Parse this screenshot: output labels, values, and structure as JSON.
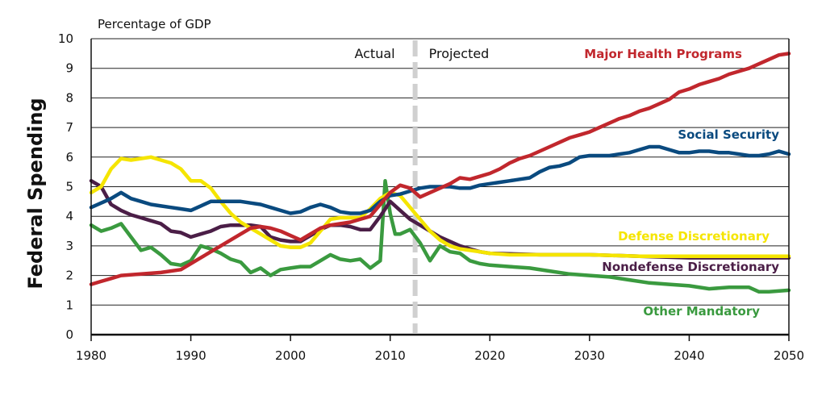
{
  "chart_data": {
    "type": "line",
    "title": "",
    "ylabel": "Federal Spending",
    "yunit_label": "Percentage of GDP",
    "xlim": [
      1980,
      2050
    ],
    "ylim": [
      0,
      10
    ],
    "x_ticks": [
      1980,
      1990,
      2000,
      2010,
      2020,
      2030,
      2040,
      2050
    ],
    "y_ticks": [
      0,
      1,
      2,
      3,
      4,
      5,
      6,
      7,
      8,
      9,
      10
    ],
    "grid": "horizontal",
    "divider": {
      "x": 2012.5,
      "left_label": "Actual",
      "right_label": "Projected",
      "color": "#d0d0d0"
    },
    "series": [
      {
        "name": "Major Health Programs",
        "color": "#c1272d",
        "points": [
          [
            1980,
            1.7
          ],
          [
            1981,
            1.8
          ],
          [
            1982,
            1.9
          ],
          [
            1983,
            2.0
          ],
          [
            1985,
            2.05
          ],
          [
            1987,
            2.1
          ],
          [
            1989,
            2.2
          ],
          [
            1990,
            2.4
          ],
          [
            1991,
            2.6
          ],
          [
            1992,
            2.8
          ],
          [
            1993,
            3.0
          ],
          [
            1994,
            3.2
          ],
          [
            1995,
            3.4
          ],
          [
            1996,
            3.6
          ],
          [
            1997,
            3.65
          ],
          [
            1998,
            3.6
          ],
          [
            1999,
            3.5
          ],
          [
            2000,
            3.35
          ],
          [
            2001,
            3.2
          ],
          [
            2002,
            3.4
          ],
          [
            2003,
            3.6
          ],
          [
            2004,
            3.7
          ],
          [
            2005,
            3.75
          ],
          [
            2006,
            3.8
          ],
          [
            2007,
            3.9
          ],
          [
            2008,
            4.0
          ],
          [
            2009,
            4.4
          ],
          [
            2010,
            4.8
          ],
          [
            2011,
            5.05
          ],
          [
            2012,
            4.95
          ],
          [
            2013,
            4.65
          ],
          [
            2014,
            4.8
          ],
          [
            2015,
            4.95
          ],
          [
            2016,
            5.1
          ],
          [
            2017,
            5.3
          ],
          [
            2018,
            5.25
          ],
          [
            2019,
            5.35
          ],
          [
            2020,
            5.45
          ],
          [
            2021,
            5.6
          ],
          [
            2022,
            5.8
          ],
          [
            2023,
            5.95
          ],
          [
            2024,
            6.05
          ],
          [
            2025,
            6.2
          ],
          [
            2026,
            6.35
          ],
          [
            2027,
            6.5
          ],
          [
            2028,
            6.65
          ],
          [
            2029,
            6.75
          ],
          [
            2030,
            6.85
          ],
          [
            2031,
            7.0
          ],
          [
            2032,
            7.15
          ],
          [
            2033,
            7.3
          ],
          [
            2034,
            7.4
          ],
          [
            2035,
            7.55
          ],
          [
            2036,
            7.65
          ],
          [
            2037,
            7.8
          ],
          [
            2038,
            7.95
          ],
          [
            2039,
            8.2
          ],
          [
            2040,
            8.3
          ],
          [
            2041,
            8.45
          ],
          [
            2042,
            8.55
          ],
          [
            2043,
            8.65
          ],
          [
            2044,
            8.8
          ],
          [
            2045,
            8.9
          ],
          [
            2046,
            9.0
          ],
          [
            2047,
            9.15
          ],
          [
            2048,
            9.3
          ],
          [
            2049,
            9.45
          ],
          [
            2050,
            9.5
          ]
        ]
      },
      {
        "name": "Social Security",
        "color": "#0a4a7f",
        "points": [
          [
            1980,
            4.3
          ],
          [
            1981,
            4.45
          ],
          [
            1982,
            4.6
          ],
          [
            1983,
            4.8
          ],
          [
            1984,
            4.6
          ],
          [
            1985,
            4.5
          ],
          [
            1986,
            4.4
          ],
          [
            1987,
            4.35
          ],
          [
            1988,
            4.3
          ],
          [
            1989,
            4.25
          ],
          [
            1990,
            4.2
          ],
          [
            1991,
            4.35
          ],
          [
            1992,
            4.5
          ],
          [
            1993,
            4.5
          ],
          [
            1994,
            4.5
          ],
          [
            1995,
            4.5
          ],
          [
            1996,
            4.45
          ],
          [
            1997,
            4.4
          ],
          [
            1998,
            4.3
          ],
          [
            1999,
            4.2
          ],
          [
            2000,
            4.1
          ],
          [
            2001,
            4.15
          ],
          [
            2002,
            4.3
          ],
          [
            2003,
            4.4
          ],
          [
            2004,
            4.3
          ],
          [
            2005,
            4.15
          ],
          [
            2006,
            4.1
          ],
          [
            2007,
            4.1
          ],
          [
            2008,
            4.2
          ],
          [
            2009,
            4.5
          ],
          [
            2010,
            4.7
          ],
          [
            2011,
            4.75
          ],
          [
            2012,
            4.85
          ],
          [
            2013,
            4.95
          ],
          [
            2014,
            5.0
          ],
          [
            2015,
            5.0
          ],
          [
            2016,
            5.0
          ],
          [
            2017,
            4.95
          ],
          [
            2018,
            4.95
          ],
          [
            2019,
            5.05
          ],
          [
            2020,
            5.1
          ],
          [
            2021,
            5.15
          ],
          [
            2022,
            5.2
          ],
          [
            2023,
            5.25
          ],
          [
            2024,
            5.3
          ],
          [
            2025,
            5.5
          ],
          [
            2026,
            5.65
          ],
          [
            2027,
            5.7
          ],
          [
            2028,
            5.8
          ],
          [
            2029,
            6.0
          ],
          [
            2030,
            6.05
          ],
          [
            2031,
            6.05
          ],
          [
            2032,
            6.05
          ],
          [
            2033,
            6.1
          ],
          [
            2034,
            6.15
          ],
          [
            2035,
            6.25
          ],
          [
            2036,
            6.35
          ],
          [
            2037,
            6.35
          ],
          [
            2038,
            6.25
          ],
          [
            2039,
            6.15
          ],
          [
            2040,
            6.15
          ],
          [
            2041,
            6.2
          ],
          [
            2042,
            6.2
          ],
          [
            2043,
            6.15
          ],
          [
            2044,
            6.15
          ],
          [
            2045,
            6.1
          ],
          [
            2046,
            6.05
          ],
          [
            2047,
            6.05
          ],
          [
            2048,
            6.1
          ],
          [
            2049,
            6.2
          ],
          [
            2050,
            6.1
          ]
        ]
      },
      {
        "name": "Defense Discretionary",
        "color": "#f5e500",
        "points": [
          [
            1980,
            4.8
          ],
          [
            1981,
            5.0
          ],
          [
            1982,
            5.6
          ],
          [
            1983,
            5.95
          ],
          [
            1984,
            5.9
          ],
          [
            1985,
            5.95
          ],
          [
            1986,
            6.0
          ],
          [
            1987,
            5.9
          ],
          [
            1988,
            5.8
          ],
          [
            1989,
            5.6
          ],
          [
            1990,
            5.2
          ],
          [
            1991,
            5.2
          ],
          [
            1992,
            4.95
          ],
          [
            1993,
            4.5
          ],
          [
            1994,
            4.1
          ],
          [
            1995,
            3.8
          ],
          [
            1996,
            3.6
          ],
          [
            1997,
            3.4
          ],
          [
            1998,
            3.2
          ],
          [
            1999,
            3.0
          ],
          [
            2000,
            2.95
          ],
          [
            2001,
            2.95
          ],
          [
            2002,
            3.1
          ],
          [
            2003,
            3.5
          ],
          [
            2004,
            3.9
          ],
          [
            2005,
            3.95
          ],
          [
            2006,
            3.95
          ],
          [
            2007,
            3.95
          ],
          [
            2008,
            4.25
          ],
          [
            2009,
            4.6
          ],
          [
            2010,
            4.8
          ],
          [
            2011,
            4.7
          ],
          [
            2012,
            4.3
          ],
          [
            2013,
            3.9
          ],
          [
            2014,
            3.5
          ],
          [
            2015,
            3.2
          ],
          [
            2016,
            3.0
          ],
          [
            2017,
            2.9
          ],
          [
            2018,
            2.85
          ],
          [
            2019,
            2.8
          ],
          [
            2020,
            2.75
          ],
          [
            2022,
            2.7
          ],
          [
            2025,
            2.7
          ],
          [
            2030,
            2.7
          ],
          [
            2035,
            2.65
          ],
          [
            2040,
            2.65
          ],
          [
            2045,
            2.65
          ],
          [
            2050,
            2.65
          ]
        ]
      },
      {
        "name": "Nondefense Discretionary",
        "color": "#4b1e47",
        "points": [
          [
            1980,
            5.2
          ],
          [
            1981,
            5.0
          ],
          [
            1982,
            4.4
          ],
          [
            1983,
            4.2
          ],
          [
            1984,
            4.05
          ],
          [
            1985,
            3.95
          ],
          [
            1986,
            3.85
          ],
          [
            1987,
            3.75
          ],
          [
            1988,
            3.5
          ],
          [
            1989,
            3.45
          ],
          [
            1990,
            3.3
          ],
          [
            1991,
            3.4
          ],
          [
            1992,
            3.5
          ],
          [
            1993,
            3.65
          ],
          [
            1994,
            3.7
          ],
          [
            1995,
            3.7
          ],
          [
            1996,
            3.7
          ],
          [
            1997,
            3.65
          ],
          [
            1998,
            3.3
          ],
          [
            1999,
            3.2
          ],
          [
            2000,
            3.15
          ],
          [
            2001,
            3.15
          ],
          [
            2002,
            3.35
          ],
          [
            2003,
            3.55
          ],
          [
            2004,
            3.7
          ],
          [
            2005,
            3.7
          ],
          [
            2006,
            3.65
          ],
          [
            2007,
            3.55
          ],
          [
            2008,
            3.55
          ],
          [
            2009,
            4.0
          ],
          [
            2010,
            4.5
          ],
          [
            2011,
            4.2
          ],
          [
            2012,
            3.9
          ],
          [
            2013,
            3.7
          ],
          [
            2014,
            3.5
          ],
          [
            2015,
            3.3
          ],
          [
            2016,
            3.15
          ],
          [
            2017,
            3.0
          ],
          [
            2018,
            2.9
          ],
          [
            2019,
            2.8
          ],
          [
            2020,
            2.75
          ],
          [
            2025,
            2.7
          ],
          [
            2030,
            2.7
          ],
          [
            2035,
            2.65
          ],
          [
            2040,
            2.6
          ],
          [
            2045,
            2.6
          ],
          [
            2050,
            2.6
          ]
        ]
      },
      {
        "name": "Other Mandatory",
        "color": "#3a9a3f",
        "points": [
          [
            1980,
            3.7
          ],
          [
            1981,
            3.5
          ],
          [
            1982,
            3.6
          ],
          [
            1983,
            3.75
          ],
          [
            1984,
            3.3
          ],
          [
            1985,
            2.85
          ],
          [
            1986,
            2.95
          ],
          [
            1987,
            2.7
          ],
          [
            1988,
            2.4
          ],
          [
            1989,
            2.35
          ],
          [
            1990,
            2.5
          ],
          [
            1991,
            3.0
          ],
          [
            1992,
            2.9
          ],
          [
            1993,
            2.75
          ],
          [
            1994,
            2.55
          ],
          [
            1995,
            2.45
          ],
          [
            1996,
            2.1
          ],
          [
            1997,
            2.25
          ],
          [
            1998,
            2.0
          ],
          [
            1999,
            2.2
          ],
          [
            2000,
            2.25
          ],
          [
            2001,
            2.3
          ],
          [
            2002,
            2.3
          ],
          [
            2003,
            2.5
          ],
          [
            2004,
            2.7
          ],
          [
            2005,
            2.55
          ],
          [
            2006,
            2.5
          ],
          [
            2007,
            2.55
          ],
          [
            2008,
            2.25
          ],
          [
            2009,
            2.5
          ],
          [
            2009.5,
            5.2
          ],
          [
            2010,
            4.1
          ],
          [
            2010.5,
            3.4
          ],
          [
            2011,
            3.4
          ],
          [
            2012,
            3.55
          ],
          [
            2013,
            3.1
          ],
          [
            2014,
            2.5
          ],
          [
            2015,
            3.0
          ],
          [
            2016,
            2.8
          ],
          [
            2017,
            2.75
          ],
          [
            2018,
            2.5
          ],
          [
            2019,
            2.4
          ],
          [
            2020,
            2.35
          ],
          [
            2022,
            2.3
          ],
          [
            2024,
            2.25
          ],
          [
            2026,
            2.15
          ],
          [
            2028,
            2.05
          ],
          [
            2030,
            2.0
          ],
          [
            2032,
            1.95
          ],
          [
            2034,
            1.85
          ],
          [
            2036,
            1.75
          ],
          [
            2038,
            1.7
          ],
          [
            2040,
            1.65
          ],
          [
            2042,
            1.55
          ],
          [
            2044,
            1.6
          ],
          [
            2046,
            1.6
          ],
          [
            2047,
            1.45
          ],
          [
            2048,
            1.45
          ],
          [
            2050,
            1.5
          ]
        ]
      }
    ]
  }
}
